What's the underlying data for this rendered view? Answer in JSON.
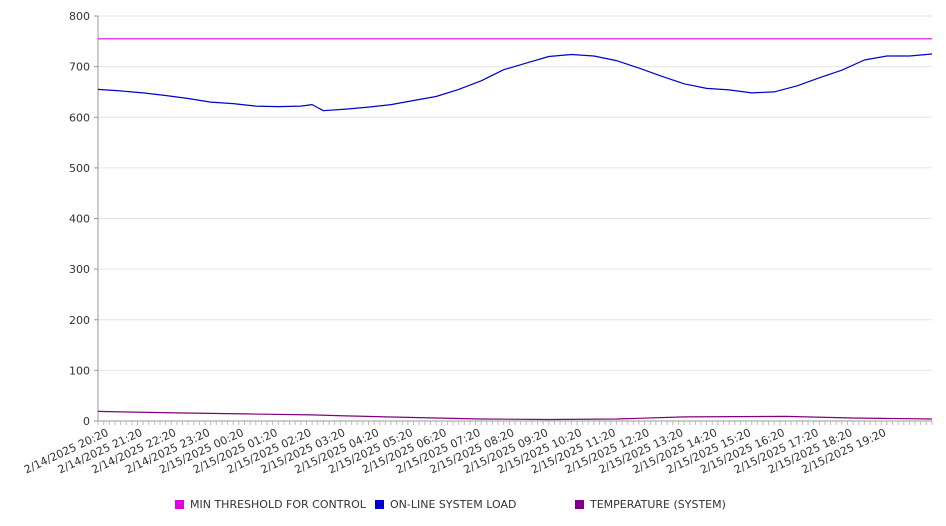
{
  "chart_data": {
    "type": "line",
    "title": "",
    "xlabel": "",
    "ylabel": "",
    "ylim": [
      0,
      800
    ],
    "yticks": [
      0,
      100,
      200,
      300,
      400,
      500,
      600,
      700,
      800
    ],
    "grid": true,
    "legend_position": "bottom",
    "x_start": "2/14/2025 20:00",
    "x_end": "2/15/2025 20:40",
    "x_ticks": [
      "2/14/2025 20:20",
      "2/14/2025 21:20",
      "2/14/2025 22:20",
      "2/14/2025 23:20",
      "2/15/2025 00:20",
      "2/15/2025 01:20",
      "2/15/2025 02:20",
      "2/15/2025 03:20",
      "2/15/2025 04:20",
      "2/15/2025 05:20",
      "2/15/2025 06:20",
      "2/15/2025 07:20",
      "2/15/2025 08:20",
      "2/15/2025 09:20",
      "2/15/2025 10:20",
      "2/15/2025 11:20",
      "2/15/2025 12:20",
      "2/15/2025 13:20",
      "2/15/2025 14:20",
      "2/15/2025 15:20",
      "2/15/2025 16:20",
      "2/15/2025 17:20",
      "2/15/2025 18:20",
      "2/15/2025 19:20"
    ],
    "series": [
      {
        "name": "MIN THRESHOLD FOR CONTROL",
        "color": "#e000e0",
        "points": [
          [
            "2/14/2025 20:00",
            755
          ],
          [
            "2/15/2025 20:40",
            755
          ]
        ]
      },
      {
        "name": "ON-LINE SYSTEM LOAD",
        "color": "#0000cc",
        "points": [
          [
            "2/14/2025 20:00",
            655
          ],
          [
            "2/14/2025 20:40",
            652
          ],
          [
            "2/14/2025 21:20",
            648
          ],
          [
            "2/14/2025 22:00",
            643
          ],
          [
            "2/14/2025 22:40",
            637
          ],
          [
            "2/14/2025 23:20",
            630
          ],
          [
            "2/15/2025 00:00",
            627
          ],
          [
            "2/15/2025 00:40",
            622
          ],
          [
            "2/15/2025 01:20",
            621
          ],
          [
            "2/15/2025 02:00",
            622
          ],
          [
            "2/15/2025 02:20",
            625
          ],
          [
            "2/15/2025 02:40",
            613
          ],
          [
            "2/15/2025 03:20",
            616
          ],
          [
            "2/15/2025 04:00",
            620
          ],
          [
            "2/15/2025 04:40",
            625
          ],
          [
            "2/15/2025 05:20",
            633
          ],
          [
            "2/15/2025 06:00",
            641
          ],
          [
            "2/15/2025 06:40",
            655
          ],
          [
            "2/15/2025 07:20",
            672
          ],
          [
            "2/15/2025 08:00",
            694
          ],
          [
            "2/15/2025 08:40",
            707
          ],
          [
            "2/15/2025 09:20",
            720
          ],
          [
            "2/15/2025 10:00",
            724
          ],
          [
            "2/15/2025 10:40",
            721
          ],
          [
            "2/15/2025 11:20",
            712
          ],
          [
            "2/15/2025 12:00",
            697
          ],
          [
            "2/15/2025 12:40",
            681
          ],
          [
            "2/15/2025 13:20",
            666
          ],
          [
            "2/15/2025 14:00",
            657
          ],
          [
            "2/15/2025 14:40",
            654
          ],
          [
            "2/15/2025 15:20",
            648
          ],
          [
            "2/15/2025 16:00",
            650
          ],
          [
            "2/15/2025 16:40",
            662
          ],
          [
            "2/15/2025 17:20",
            678
          ],
          [
            "2/15/2025 18:00",
            693
          ],
          [
            "2/15/2025 18:40",
            713
          ],
          [
            "2/15/2025 19:20",
            721
          ],
          [
            "2/15/2025 20:00",
            721
          ],
          [
            "2/15/2025 20:40",
            725
          ]
        ]
      },
      {
        "name": "TEMPERATURE (SYSTEM)",
        "color": "#800080",
        "points": [
          [
            "2/14/2025 20:00",
            19
          ],
          [
            "2/14/2025 20:40",
            18
          ],
          [
            "2/14/2025 22:20",
            16
          ],
          [
            "2/15/2025 00:20",
            14
          ],
          [
            "2/15/2025 02:20",
            12
          ],
          [
            "2/15/2025 03:20",
            10
          ],
          [
            "2/15/2025 05:20",
            7
          ],
          [
            "2/15/2025 07:20",
            4
          ],
          [
            "2/15/2025 09:20",
            3
          ],
          [
            "2/15/2025 11:20",
            4
          ],
          [
            "2/15/2025 13:20",
            8
          ],
          [
            "2/15/2025 16:20",
            9
          ],
          [
            "2/15/2025 18:20",
            6
          ],
          [
            "2/15/2025 20:40",
            4
          ]
        ]
      }
    ]
  }
}
